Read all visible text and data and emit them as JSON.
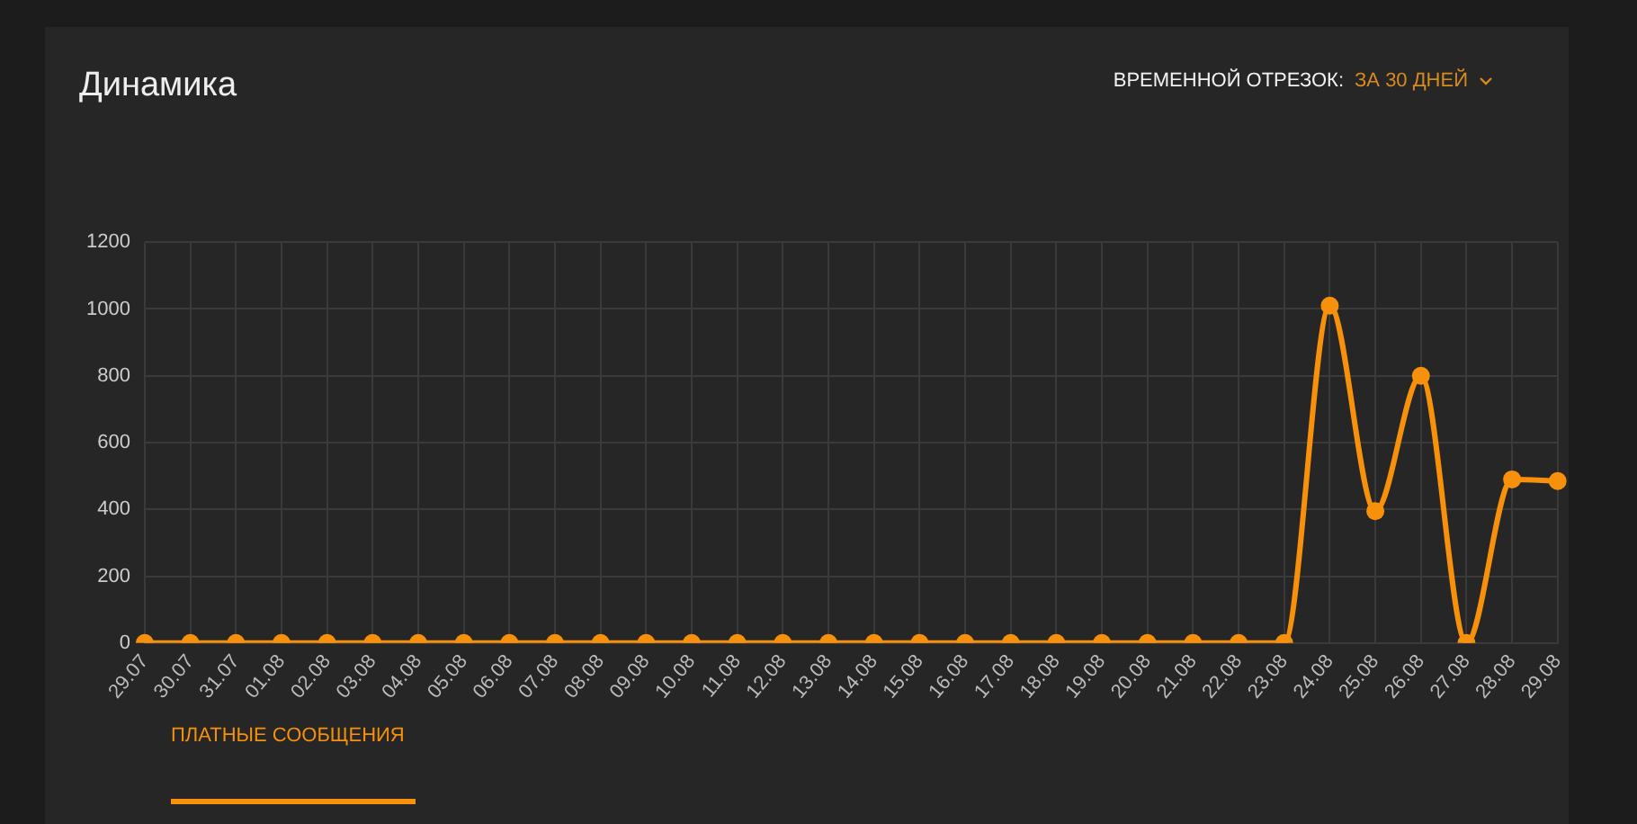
{
  "chart_data": {
    "type": "line",
    "title": "Динамика",
    "annotations": [
      "ВРЕМЕННОЙ ОТРЕЗОК:",
      "ЗА 30 ДНЕЙ"
    ],
    "categories": [
      "29.07",
      "30.07",
      "31.07",
      "01.08",
      "02.08",
      "03.08",
      "04.08",
      "05.08",
      "06.08",
      "07.08",
      "08.08",
      "09.08",
      "10.08",
      "11.08",
      "12.08",
      "13.08",
      "14.08",
      "15.08",
      "16.08",
      "17.08",
      "18.08",
      "19.08",
      "20.08",
      "21.08",
      "22.08",
      "23.08",
      "24.08",
      "25.08",
      "26.08",
      "27.08",
      "28.08",
      "29.08"
    ],
    "series": [
      {
        "name": "ПЛАТНЫЕ СООБЩЕНИЯ",
        "color": "#f7900a",
        "values": [
          0,
          0,
          0,
          0,
          0,
          0,
          0,
          0,
          0,
          0,
          0,
          0,
          0,
          0,
          0,
          0,
          0,
          0,
          0,
          0,
          0,
          0,
          0,
          0,
          0,
          0,
          1010,
          395,
          800,
          0,
          490,
          485
        ]
      }
    ],
    "ylim": [
      0,
      1200
    ],
    "yticks": [
      0,
      200,
      400,
      600,
      800,
      1000,
      1200
    ],
    "grid": true,
    "legend": "bottom left",
    "marker": "circle",
    "line_style": "solid"
  }
}
